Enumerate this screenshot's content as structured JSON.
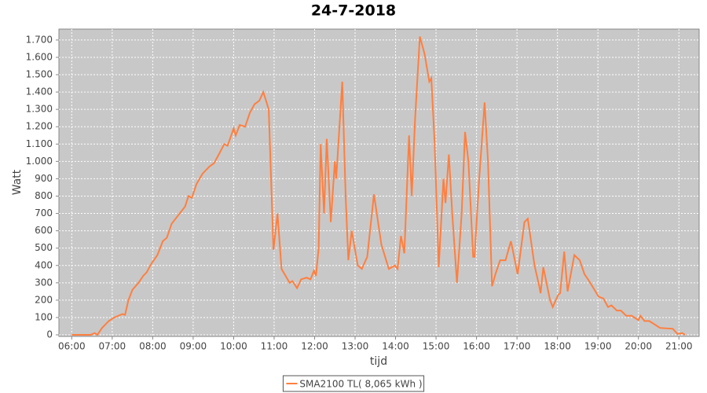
{
  "chart_data": {
    "type": "line",
    "title": "24-7-2018",
    "x_label": "tijd",
    "y_label": "Watt",
    "x": [
      "06:00",
      "06:28",
      "06:34",
      "06:38",
      "06:45",
      "06:55",
      "07:03",
      "07:09",
      "07:15",
      "07:19",
      "07:24",
      "07:30",
      "07:39",
      "07:46",
      "07:51",
      "07:58",
      "08:07",
      "08:15",
      "08:21",
      "08:28",
      "08:40",
      "08:48",
      "08:53",
      "08:58",
      "09:05",
      "09:14",
      "09:24",
      "09:31",
      "09:38",
      "09:46",
      "09:51",
      "10:00",
      "10:03",
      "10:09",
      "10:17",
      "10:24",
      "10:31",
      "10:38",
      "10:44",
      "10:52",
      "10:59",
      "11:05",
      "11:11",
      "11:23",
      "11:27",
      "11:34",
      "11:40",
      "11:48",
      "11:54",
      "11:59",
      "12:02",
      "12:06",
      "12:09",
      "12:14",
      "12:18",
      "12:24",
      "12:30",
      "12:32",
      "12:41",
      "12:46",
      "12:50",
      "12:55",
      "13:04",
      "13:10",
      "13:18",
      "13:28",
      "13:39",
      "13:50",
      "13:59",
      "14:03",
      "14:08",
      "14:13",
      "14:20",
      "14:24",
      "14:29",
      "14:36",
      "14:43",
      "14:50",
      "14:53",
      "14:58",
      "15:04",
      "15:11",
      "15:14",
      "15:19",
      "15:24",
      "15:31",
      "15:38",
      "15:43",
      "15:48",
      "15:55",
      "15:57",
      "16:04",
      "16:12",
      "16:17",
      "16:23",
      "16:28",
      "16:35",
      "16:43",
      "16:51",
      "17:01",
      "17:11",
      "17:16",
      "17:26",
      "17:33",
      "17:35",
      "17:39",
      "17:49",
      "17:53",
      "18:01",
      "18:04",
      "18:10",
      "18:15",
      "18:25",
      "18:33",
      "18:40",
      "18:47",
      "19:01",
      "19:08",
      "19:15",
      "19:20",
      "19:28",
      "19:34",
      "19:42",
      "19:50",
      "20:00",
      "20:03",
      "20:09",
      "20:16",
      "20:24",
      "20:32",
      "20:51",
      "20:58",
      "21:05",
      "21:09"
    ],
    "series": [
      {
        "name": "SMA2100 TL( 8,065 kWh )",
        "color": "#ff7f3f",
        "values": [
          0,
          0,
          10,
          0,
          40,
          80,
          100,
          110,
          120,
          115,
          200,
          260,
          300,
          340,
          360,
          410,
          460,
          540,
          560,
          640,
          700,
          740,
          800,
          790,
          870,
          930,
          970,
          990,
          1040,
          1100,
          1090,
          1190,
          1150,
          1210,
          1200,
          1280,
          1330,
          1350,
          1400,
          1300,
          490,
          700,
          380,
          300,
          310,
          270,
          320,
          330,
          320,
          370,
          340,
          500,
          1100,
          700,
          1130,
          650,
          1000,
          900,
          1460,
          800,
          430,
          600,
          400,
          380,
          450,
          810,
          520,
          380,
          400,
          380,
          570,
          470,
          1150,
          800,
          1250,
          1720,
          1620,
          1460,
          1480,
          1100,
          390,
          900,
          760,
          1040,
          700,
          300,
          700,
          1170,
          1000,
          450,
          450,
          900,
          1340,
          1000,
          280,
          350,
          430,
          430,
          540,
          350,
          650,
          670,
          400,
          280,
          240,
          390,
          200,
          160,
          230,
          240,
          480,
          250,
          460,
          430,
          350,
          310,
          220,
          210,
          160,
          170,
          140,
          140,
          110,
          110,
          85,
          110,
          80,
          80,
          60,
          40,
          35,
          5,
          10,
          0
        ]
      }
    ],
    "xlim": [
      "05:41",
      "21:30"
    ],
    "xticks": [
      "06:00",
      "07:00",
      "08:00",
      "09:00",
      "10:00",
      "11:00",
      "12:00",
      "13:00",
      "14:00",
      "15:00",
      "16:00",
      "17:00",
      "18:00",
      "19:00",
      "20:00",
      "21:00"
    ],
    "ylim": [
      -9,
      1763
    ],
    "yticks": [
      0,
      100,
      200,
      300,
      400,
      500,
      600,
      700,
      800,
      900,
      {
        "value": 1000,
        "label": "1.000"
      },
      {
        "value": 1100,
        "label": "1.100"
      },
      {
        "value": 1200,
        "label": "1.200"
      },
      {
        "value": 1300,
        "label": "1.300"
      },
      {
        "value": 1400,
        "label": "1.400"
      },
      {
        "value": 1500,
        "label": "1.500"
      },
      {
        "value": 1600,
        "label": "1.600"
      },
      {
        "value": 1700,
        "label": "1.700"
      }
    ],
    "grid": true,
    "legend": "bottom"
  }
}
